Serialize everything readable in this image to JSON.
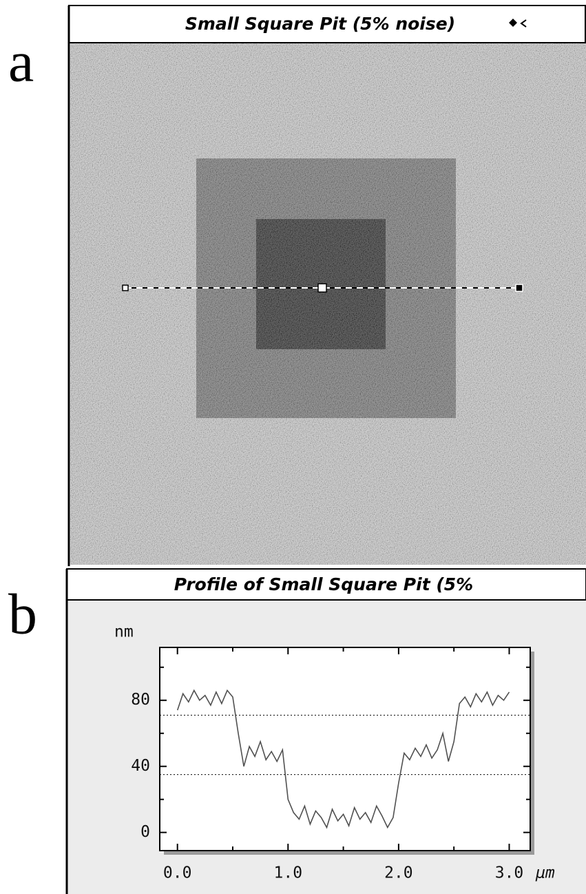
{
  "panel_a": {
    "letter": "a",
    "title": "Small Square Pit (5% noise)"
  },
  "panel_b": {
    "letter": "b"
  },
  "chart_data": {
    "type": "line",
    "title": "Profile of Small Square Pit (5%",
    "y_label": "nm",
    "x_label": "μm",
    "x": [
      0.0,
      0.05,
      0.1,
      0.15,
      0.2,
      0.25,
      0.3,
      0.35,
      0.4,
      0.45,
      0.5,
      0.55,
      0.6,
      0.65,
      0.7,
      0.75,
      0.8,
      0.85,
      0.9,
      0.95,
      1.0,
      1.05,
      1.1,
      1.15,
      1.2,
      1.25,
      1.3,
      1.35,
      1.4,
      1.45,
      1.5,
      1.55,
      1.6,
      1.65,
      1.7,
      1.75,
      1.8,
      1.85,
      1.9,
      1.95,
      2.0,
      2.05,
      2.1,
      2.15,
      2.2,
      2.25,
      2.3,
      2.35,
      2.4,
      2.45,
      2.5,
      2.55,
      2.6,
      2.65,
      2.7,
      2.75,
      2.8,
      2.85,
      2.9,
      2.95,
      3.0
    ],
    "series": [
      {
        "color": "#505050",
        "values": [
          74,
          84,
          79,
          86,
          80,
          83,
          77,
          85,
          78,
          86,
          82,
          60,
          40,
          52,
          46,
          55,
          44,
          49,
          43,
          50,
          20,
          12,
          8,
          16,
          5,
          13,
          9,
          3,
          14,
          7,
          11,
          4,
          15,
          8,
          12,
          6,
          16,
          10,
          3,
          9,
          30,
          48,
          44,
          51,
          46,
          53,
          45,
          50,
          60,
          43,
          55,
          78,
          82,
          76,
          84,
          79,
          85,
          77,
          83,
          80,
          85
        ]
      }
    ],
    "xlim": [
      -0.16,
      3.19
    ],
    "ylim": [
      -11,
      112
    ],
    "xticks": [
      {
        "value": 0,
        "label": "0.0"
      },
      {
        "value": 1,
        "label": "1.0"
      },
      {
        "value": 2,
        "label": "2.0"
      },
      {
        "value": 3,
        "label": "3.0"
      }
    ],
    "yticks": [
      0,
      40,
      80
    ],
    "x_minor_ticks": [
      0.5,
      1.5,
      2.5
    ],
    "y_minor_ticks": [
      20,
      60,
      100
    ],
    "cursor_lines": [
      71,
      35
    ]
  }
}
